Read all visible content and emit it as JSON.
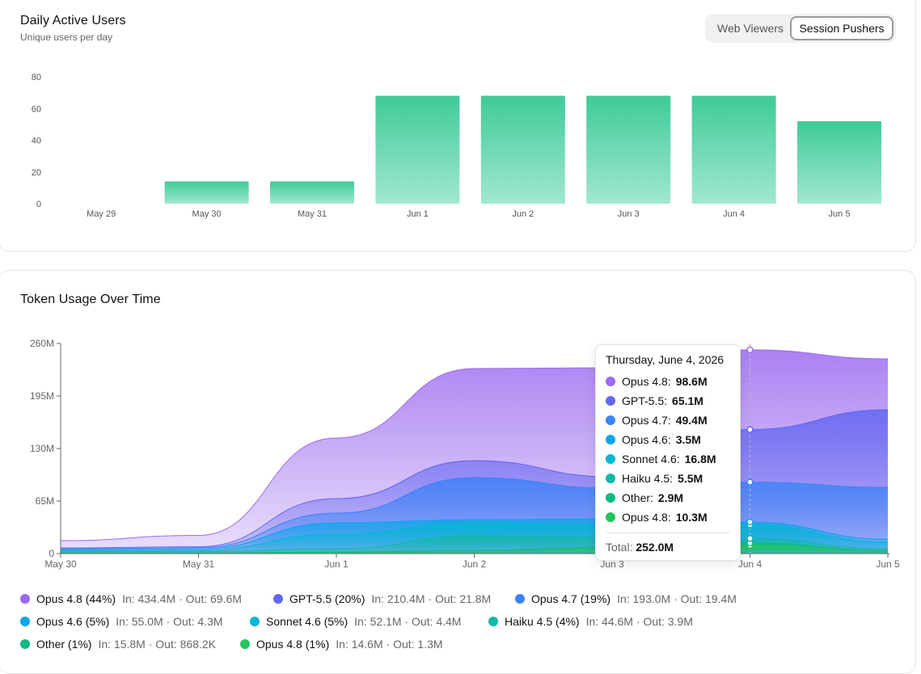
{
  "dau": {
    "title": "Daily Active Users",
    "subtitle": "Unique users per day",
    "toggle": {
      "options": [
        "Web Viewers",
        "Session Pushers"
      ],
      "selected": "Session Pushers"
    }
  },
  "tokens": {
    "title": "Token Usage Over Time",
    "tooltip": {
      "date": "Thursday, June 4, 2026",
      "rows": [
        {
          "name": "Opus 4.8",
          "value": "98.6M",
          "color": "#9b6bf0"
        },
        {
          "name": "GPT-5.5",
          "value": "65.1M",
          "color": "#6366f1"
        },
        {
          "name": "Opus 4.7",
          "value": "49.4M",
          "color": "#3b82f6"
        },
        {
          "name": "Opus 4.6",
          "value": "3.5M",
          "color": "#0ea5e9"
        },
        {
          "name": "Sonnet 4.6",
          "value": "16.8M",
          "color": "#06b6d4"
        },
        {
          "name": "Haiku 4.5",
          "value": "5.5M",
          "color": "#14b8a6"
        },
        {
          "name": "Other",
          "value": "2.9M",
          "color": "#10b981"
        },
        {
          "name": "Opus 4.8",
          "value": "10.3M",
          "color": "#22c55e"
        }
      ],
      "total_label": "Total:",
      "total_value": "252.0M"
    },
    "legend": [
      {
        "label": "Opus 4.8 (44%)",
        "io": "In: 434.4M · Out: 69.6M",
        "color": "#9b6bf0"
      },
      {
        "label": "GPT-5.5 (20%)",
        "io": "In: 210.4M · Out: 21.8M",
        "color": "#6366f1"
      },
      {
        "label": "Opus 4.7 (19%)",
        "io": "In: 193.0M · Out: 19.4M",
        "color": "#3b82f6"
      },
      {
        "label": "Opus 4.6 (5%)",
        "io": "In: 55.0M · Out: 4.3M",
        "color": "#0ea5e9"
      },
      {
        "label": "Sonnet 4.6 (5%)",
        "io": "In: 52.1M · Out: 4.4M",
        "color": "#06b6d4"
      },
      {
        "label": "Haiku 4.5 (4%)",
        "io": "In: 44.6M · Out: 3.9M",
        "color": "#14b8a6"
      },
      {
        "label": "Other (1%)",
        "io": "In: 15.8M · Out: 868.2K",
        "color": "#10b981"
      },
      {
        "label": "Opus 4.8 (1%)",
        "io": "In: 14.6M · Out: 1.3M",
        "color": "#22c55e"
      }
    ]
  },
  "chart_data": [
    {
      "type": "bar",
      "title": "Daily Active Users",
      "subtitle": "Unique users per day",
      "categories": [
        "May 29",
        "May 30",
        "May 31",
        "Jun 1",
        "Jun 2",
        "Jun 3",
        "Jun 4",
        "Jun 5"
      ],
      "values": [
        0,
        14,
        14,
        68,
        68,
        68,
        68,
        52
      ],
      "ylim": [
        0,
        80
      ],
      "yticks": [
        0,
        20,
        40,
        60,
        80
      ],
      "color": "#3ecb98",
      "grid": false
    },
    {
      "type": "area",
      "stacked": true,
      "title": "Token Usage Over Time",
      "x": [
        "May 30",
        "May 31",
        "Jun 1",
        "Jun 2",
        "Jun 3",
        "Jun 4",
        "Jun 5"
      ],
      "ylim": [
        0,
        260000000
      ],
      "yticks": [
        "0",
        "65M",
        "130M",
        "195M",
        "260M"
      ],
      "grid": false,
      "series": [
        {
          "name": "Opus 4.8",
          "color": "#22c55e",
          "values": [
            500000,
            500000,
            1000000,
            2000000,
            6000000,
            10300000,
            3000000
          ]
        },
        {
          "name": "Other",
          "color": "#10b981",
          "values": [
            300000,
            300000,
            1000000,
            2000000,
            2000000,
            2900000,
            1000000
          ]
        },
        {
          "name": "Haiku 4.5",
          "color": "#14b8a6",
          "values": [
            1500000,
            1500000,
            4000000,
            18000000,
            12000000,
            5500000,
            2000000
          ]
        },
        {
          "name": "Sonnet 4.6",
          "color": "#06b6d4",
          "values": [
            1000000,
            1500000,
            18000000,
            16000000,
            15000000,
            16800000,
            8000000
          ]
        },
        {
          "name": "Opus 4.6",
          "color": "#0ea5e9",
          "values": [
            1500000,
            2000000,
            14000000,
            4000000,
            8000000,
            3500000,
            4000000
          ]
        },
        {
          "name": "Opus 4.7",
          "color": "#3b82f6",
          "values": [
            1000000,
            1500000,
            12000000,
            52000000,
            38000000,
            49400000,
            64000000
          ]
        },
        {
          "name": "GPT-5.5",
          "color": "#6366f1",
          "values": [
            1200000,
            1200000,
            18000000,
            21000000,
            14000000,
            65100000,
            96000000
          ]
        },
        {
          "name": "Opus 4.8",
          "color": "#9b6bf0",
          "values": [
            9000000,
            14000000,
            75000000,
            114000000,
            135000000,
            98600000,
            63000000
          ]
        }
      ],
      "hover_x": "Jun 4",
      "hover_total": "252.0M"
    }
  ]
}
